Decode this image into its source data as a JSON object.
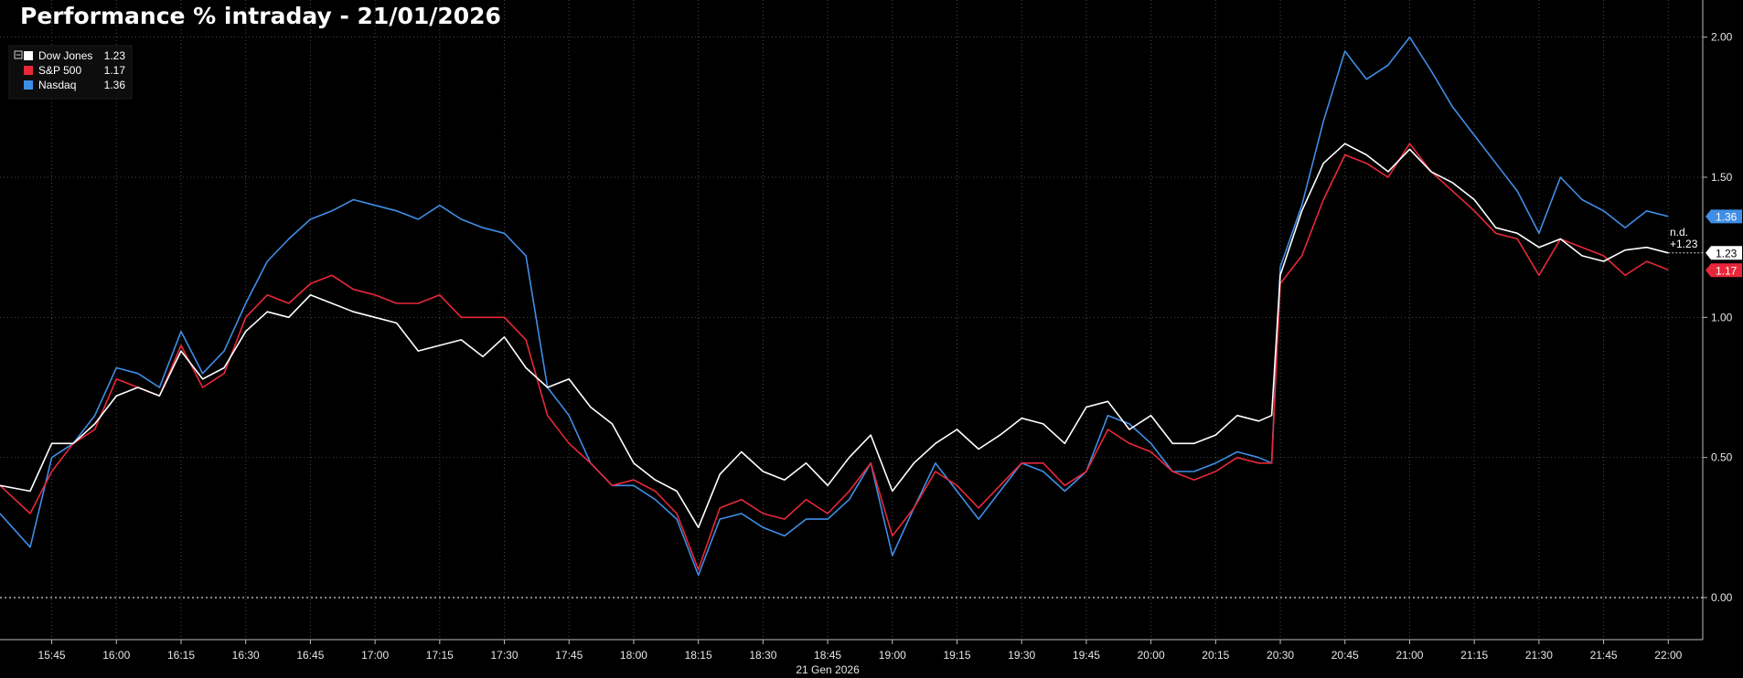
{
  "chart_data": {
    "type": "line",
    "title": "Performance % intraday - 21/01/2026",
    "xlabel": "21 Gen 2026",
    "ylabel": "",
    "x_ticks": [
      "15:45",
      "16:00",
      "16:15",
      "16:30",
      "16:45",
      "17:00",
      "17:15",
      "17:30",
      "17:45",
      "18:00",
      "18:15",
      "18:30",
      "18:45",
      "19:00",
      "19:15",
      "19:30",
      "19:45",
      "20:00",
      "20:15",
      "20:30",
      "20:45",
      "21:00",
      "21:15",
      "21:30",
      "21:45",
      "22:00"
    ],
    "y_ticks": [
      "0.00",
      "0.50",
      "1.00",
      "1.50",
      "2.00"
    ],
    "xlim": [
      "15:33",
      "22:08"
    ],
    "ylim": [
      -0.15,
      2.1
    ],
    "grid": true,
    "legend_position": "top-left",
    "end_annotation": {
      "line1": "n.d.",
      "line2": "+1.23"
    },
    "series": [
      {
        "name": "Dow Jones",
        "value_label": "1.23",
        "color": "#ffffff",
        "x": [
          "15:33",
          "15:40",
          "15:45",
          "15:50",
          "15:55",
          "16:00",
          "16:05",
          "16:10",
          "16:15",
          "16:20",
          "16:25",
          "16:30",
          "16:35",
          "16:40",
          "16:45",
          "16:50",
          "16:55",
          "17:00",
          "17:05",
          "17:10",
          "17:15",
          "17:20",
          "17:25",
          "17:30",
          "17:35",
          "17:40",
          "17:45",
          "17:50",
          "17:55",
          "18:00",
          "18:05",
          "18:10",
          "18:15",
          "18:20",
          "18:25",
          "18:30",
          "18:35",
          "18:40",
          "18:45",
          "18:50",
          "18:55",
          "19:00",
          "19:05",
          "19:10",
          "19:15",
          "19:20",
          "19:25",
          "19:30",
          "19:35",
          "19:40",
          "19:45",
          "19:50",
          "19:55",
          "20:00",
          "20:05",
          "20:10",
          "20:15",
          "20:20",
          "20:25",
          "20:28",
          "20:30",
          "20:35",
          "20:40",
          "20:45",
          "20:50",
          "20:55",
          "21:00",
          "21:05",
          "21:10",
          "21:15",
          "21:20",
          "21:25",
          "21:30",
          "21:35",
          "21:40",
          "21:45",
          "21:50",
          "21:55",
          "22:00"
        ],
        "values": [
          0.4,
          0.38,
          0.55,
          0.55,
          0.62,
          0.72,
          0.75,
          0.72,
          0.88,
          0.78,
          0.82,
          0.95,
          1.02,
          1.0,
          1.08,
          1.05,
          1.02,
          1.0,
          0.98,
          0.88,
          0.9,
          0.92,
          0.86,
          0.93,
          0.82,
          0.75,
          0.78,
          0.68,
          0.62,
          0.48,
          0.42,
          0.38,
          0.25,
          0.44,
          0.52,
          0.45,
          0.42,
          0.48,
          0.4,
          0.5,
          0.58,
          0.38,
          0.48,
          0.55,
          0.6,
          0.53,
          0.58,
          0.64,
          0.62,
          0.55,
          0.68,
          0.7,
          0.6,
          0.65,
          0.55,
          0.55,
          0.58,
          0.65,
          0.63,
          0.65,
          1.15,
          1.38,
          1.55,
          1.62,
          1.58,
          1.52,
          1.6,
          1.52,
          1.48,
          1.42,
          1.32,
          1.3,
          1.25,
          1.28,
          1.22,
          1.2,
          1.24,
          1.25,
          1.23
        ]
      },
      {
        "name": "S&P 500",
        "value_label": "1.17",
        "color": "#e8283a",
        "x": [
          "15:33",
          "15:40",
          "15:45",
          "15:50",
          "15:55",
          "16:00",
          "16:05",
          "16:10",
          "16:15",
          "16:20",
          "16:25",
          "16:30",
          "16:35",
          "16:40",
          "16:45",
          "16:50",
          "16:55",
          "17:00",
          "17:05",
          "17:10",
          "17:15",
          "17:20",
          "17:25",
          "17:30",
          "17:35",
          "17:40",
          "17:45",
          "17:50",
          "17:55",
          "18:00",
          "18:05",
          "18:10",
          "18:15",
          "18:20",
          "18:25",
          "18:30",
          "18:35",
          "18:40",
          "18:45",
          "18:50",
          "18:55",
          "19:00",
          "19:05",
          "19:10",
          "19:15",
          "19:20",
          "19:25",
          "19:30",
          "19:35",
          "19:40",
          "19:45",
          "19:50",
          "19:55",
          "20:00",
          "20:05",
          "20:10",
          "20:15",
          "20:20",
          "20:25",
          "20:28",
          "20:30",
          "20:35",
          "20:40",
          "20:45",
          "20:50",
          "20:55",
          "21:00",
          "21:05",
          "21:10",
          "21:15",
          "21:20",
          "21:25",
          "21:30",
          "21:35",
          "21:40",
          "21:45",
          "21:50",
          "21:55",
          "22:00"
        ],
        "values": [
          0.4,
          0.3,
          0.45,
          0.55,
          0.6,
          0.78,
          0.75,
          0.72,
          0.9,
          0.75,
          0.8,
          1.0,
          1.08,
          1.05,
          1.12,
          1.15,
          1.1,
          1.08,
          1.05,
          1.05,
          1.08,
          1.0,
          1.0,
          1.0,
          0.92,
          0.65,
          0.55,
          0.48,
          0.4,
          0.42,
          0.38,
          0.3,
          0.1,
          0.32,
          0.35,
          0.3,
          0.28,
          0.35,
          0.3,
          0.38,
          0.48,
          0.22,
          0.32,
          0.45,
          0.4,
          0.32,
          0.4,
          0.48,
          0.48,
          0.4,
          0.45,
          0.6,
          0.55,
          0.52,
          0.45,
          0.42,
          0.45,
          0.5,
          0.48,
          0.48,
          1.12,
          1.22,
          1.42,
          1.58,
          1.55,
          1.5,
          1.62,
          1.52,
          1.45,
          1.38,
          1.3,
          1.28,
          1.15,
          1.28,
          1.25,
          1.22,
          1.15,
          1.2,
          1.17
        ]
      },
      {
        "name": "Nasdaq",
        "value_label": "1.36",
        "color": "#3f8ee6",
        "x": [
          "15:33",
          "15:40",
          "15:45",
          "15:50",
          "15:55",
          "16:00",
          "16:05",
          "16:10",
          "16:15",
          "16:20",
          "16:25",
          "16:30",
          "16:35",
          "16:40",
          "16:45",
          "16:50",
          "16:55",
          "17:00",
          "17:05",
          "17:10",
          "17:15",
          "17:20",
          "17:25",
          "17:30",
          "17:35",
          "17:40",
          "17:45",
          "17:50",
          "17:55",
          "18:00",
          "18:05",
          "18:10",
          "18:15",
          "18:20",
          "18:25",
          "18:30",
          "18:35",
          "18:40",
          "18:45",
          "18:50",
          "18:55",
          "19:00",
          "19:05",
          "19:10",
          "19:15",
          "19:20",
          "19:25",
          "19:30",
          "19:35",
          "19:40",
          "19:45",
          "19:50",
          "19:55",
          "20:00",
          "20:05",
          "20:10",
          "20:15",
          "20:20",
          "20:25",
          "20:28",
          "20:30",
          "20:35",
          "20:40",
          "20:45",
          "20:50",
          "20:55",
          "21:00",
          "21:05",
          "21:10",
          "21:15",
          "21:20",
          "21:25",
          "21:30",
          "21:35",
          "21:40",
          "21:45",
          "21:50",
          "21:55",
          "22:00"
        ],
        "values": [
          0.3,
          0.18,
          0.5,
          0.55,
          0.65,
          0.82,
          0.8,
          0.75,
          0.95,
          0.8,
          0.88,
          1.05,
          1.2,
          1.28,
          1.35,
          1.38,
          1.42,
          1.4,
          1.38,
          1.35,
          1.4,
          1.35,
          1.32,
          1.3,
          1.22,
          0.75,
          0.65,
          0.48,
          0.4,
          0.4,
          0.35,
          0.28,
          0.08,
          0.28,
          0.3,
          0.25,
          0.22,
          0.28,
          0.28,
          0.35,
          0.48,
          0.15,
          0.32,
          0.48,
          0.38,
          0.28,
          0.38,
          0.48,
          0.45,
          0.38,
          0.45,
          0.65,
          0.62,
          0.55,
          0.45,
          0.45,
          0.48,
          0.52,
          0.5,
          0.48,
          1.18,
          1.4,
          1.7,
          1.95,
          1.85,
          1.9,
          2.0,
          1.88,
          1.75,
          1.65,
          1.55,
          1.45,
          1.3,
          1.5,
          1.42,
          1.38,
          1.32,
          1.38,
          1.36
        ]
      }
    ]
  }
}
